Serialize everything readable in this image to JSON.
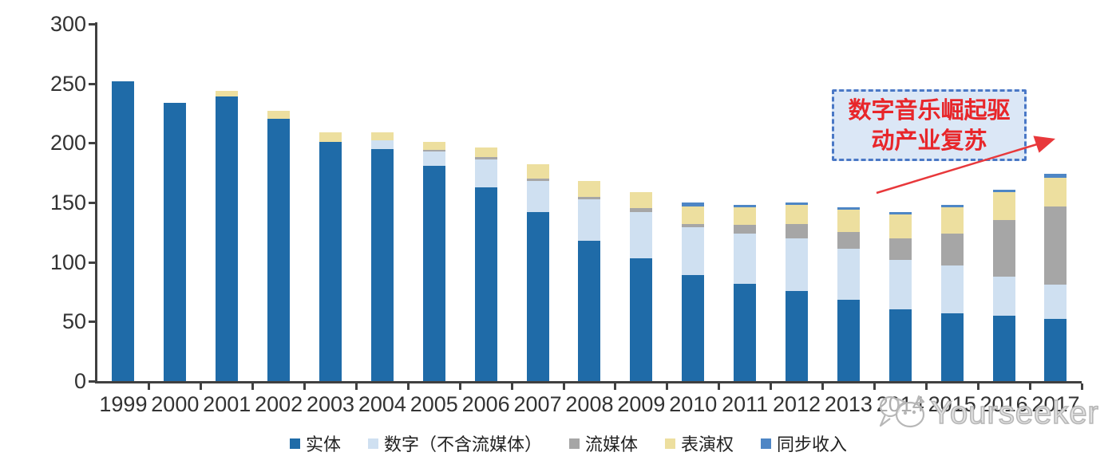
{
  "chart_data": {
    "type": "bar",
    "stacked": true,
    "title": "",
    "xlabel": "",
    "ylabel": "",
    "ylim": [
      0,
      300
    ],
    "y_ticks": [
      0,
      50,
      100,
      150,
      200,
      250,
      300
    ],
    "grid": false,
    "legend_position": "bottom",
    "categories": [
      "1999",
      "2000",
      "2001",
      "2002",
      "2003",
      "2004",
      "2005",
      "2006",
      "2007",
      "2008",
      "2009",
      "2010",
      "2011",
      "2012",
      "2013",
      "2014",
      "2015",
      "2016",
      "2017"
    ],
    "series": [
      {
        "name": "实体",
        "color": "#1f6ba8",
        "values": [
          252,
          234,
          239,
          220,
          201,
          195,
          181,
          163,
          142,
          118,
          103,
          89,
          82,
          76,
          68,
          60,
          57,
          55,
          52
        ]
      },
      {
        "name": "数字（不含流媒体）",
        "color": "#cfe0f1",
        "values": [
          0,
          0,
          0,
          0,
          0,
          7,
          12,
          23,
          26,
          35,
          39,
          40,
          42,
          44,
          43,
          42,
          40,
          33,
          29
        ]
      },
      {
        "name": "流媒体",
        "color": "#a6a6a6",
        "values": [
          0,
          0,
          0,
          0,
          0,
          0,
          1,
          2,
          2,
          2,
          3,
          3,
          7,
          12,
          14,
          18,
          27,
          47,
          66
        ]
      },
      {
        "name": "表演权",
        "color": "#eddf9f",
        "values": [
          0,
          0,
          5,
          7,
          8,
          7,
          7,
          8,
          12,
          13,
          14,
          15,
          15,
          16,
          19,
          20,
          22,
          24,
          24
        ]
      },
      {
        "name": "同步收入",
        "color": "#4e86c5",
        "values": [
          0,
          0,
          0,
          0,
          0,
          0,
          0,
          0,
          0,
          0,
          0,
          3,
          2,
          2,
          2,
          2,
          2,
          2,
          3
        ]
      }
    ]
  },
  "axes": {
    "axis_color": "#404040",
    "tick_label_color": "#333333"
  },
  "annotation": {
    "line1": "数字音乐崛起驱",
    "line2": "动产业复苏",
    "text_color": "#e8262a",
    "border_color": "#4a78c6",
    "fill_color": "#dbe7f6",
    "arrow_color": "#e8383b"
  },
  "watermark": {
    "text": "Yourseeker",
    "logo": "cat-face-icon"
  }
}
